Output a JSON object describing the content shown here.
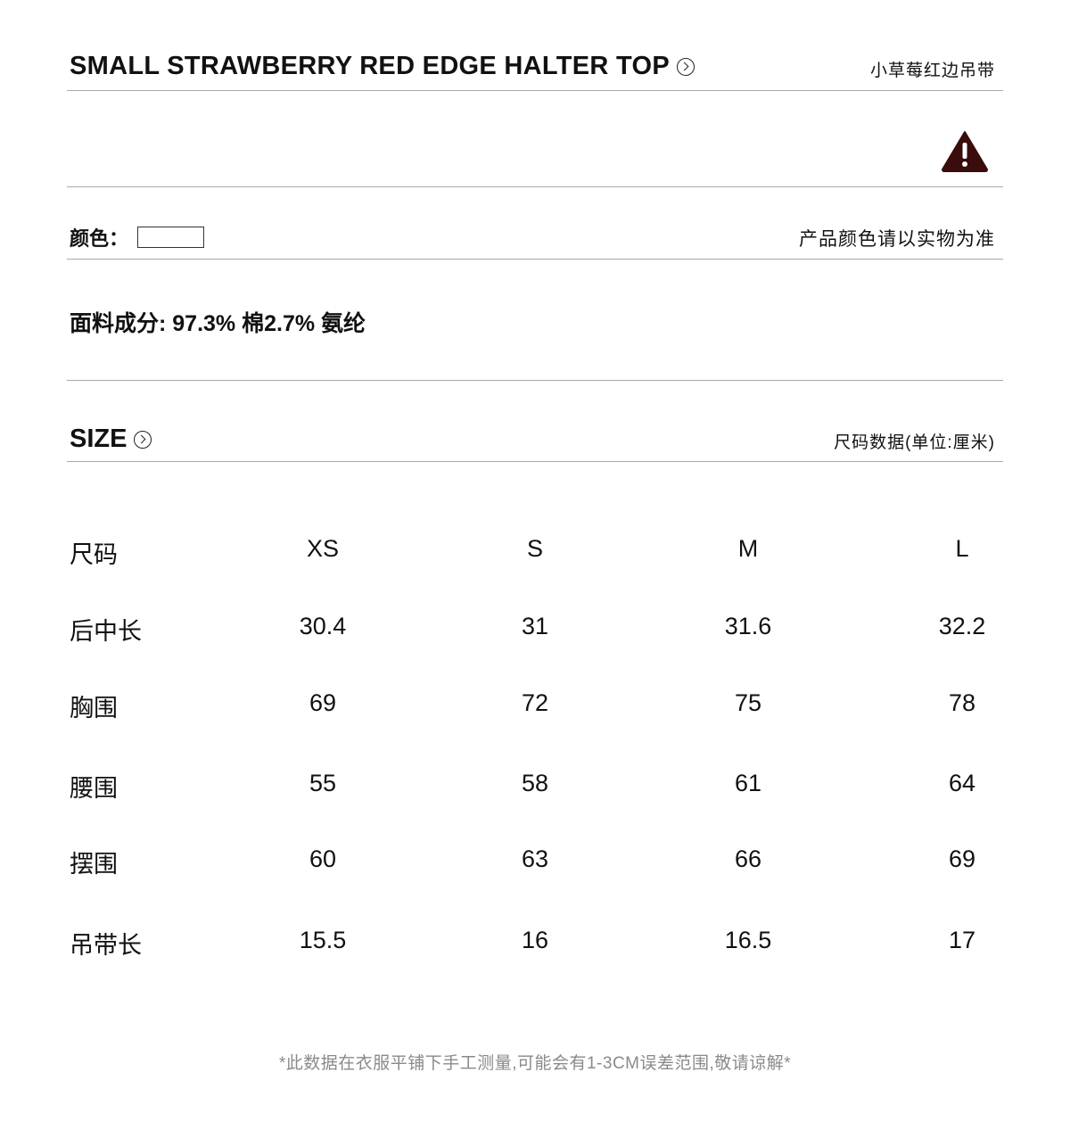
{
  "header": {
    "title_en": "SMALL STRAWBERRY RED EDGE HALTER TOP",
    "title_cn": "小草莓红边吊带"
  },
  "warning": {
    "icon": "warning-triangle-icon",
    "color": "#3a0c0c"
  },
  "color_row": {
    "label": "颜色：",
    "note": "产品颜色请以实物为准"
  },
  "fabric": {
    "text": "面料成分: 97.3% 棉2.7% 氨纶"
  },
  "size_section": {
    "title": "SIZE",
    "unit_note": "尺码数据(单位:厘米)"
  },
  "size_table": {
    "columns": [
      "尺码",
      "XS",
      "S",
      "M",
      "L"
    ],
    "rows": [
      {
        "label": "后中长",
        "values": [
          "30.4",
          "31",
          "31.6",
          "32.2"
        ]
      },
      {
        "label": "胸围",
        "values": [
          "69",
          "72",
          "75",
          "78"
        ]
      },
      {
        "label": "腰围",
        "values": [
          "55",
          "58",
          "61",
          "64"
        ]
      },
      {
        "label": "摆围",
        "values": [
          "60",
          "63",
          "66",
          "69"
        ]
      },
      {
        "label": "吊带长",
        "values": [
          "15.5",
          "16",
          "16.5",
          "17"
        ]
      }
    ]
  },
  "footer": {
    "note": "*此数据在衣服平铺下手工测量,可能会有1-3CM误差范围,敬请谅解*"
  }
}
